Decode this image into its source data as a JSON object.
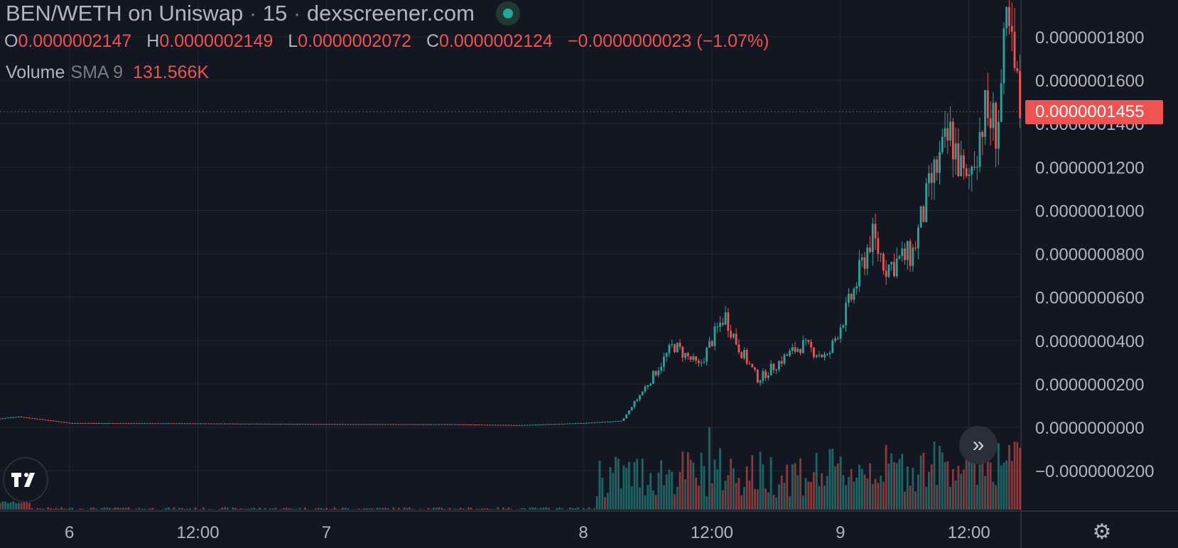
{
  "header": {
    "title": "BEN/WETH on Uniswap",
    "sep1": "·",
    "interval": "15",
    "sep2": "·",
    "source": "dexscreener.com"
  },
  "ohlc": {
    "o_label": "O",
    "o_value": "0.0000002147",
    "h_label": "H",
    "h_value": "0.0000002149",
    "l_label": "L",
    "l_value": "0.0000002072",
    "c_label": "C",
    "c_value": "0.0000002124",
    "change": "−0.0000000023 (−1.07%)"
  },
  "volume": {
    "label": "Volume",
    "sma": "SMA 9",
    "value": "131.566K"
  },
  "current_price": "0.0000001455",
  "colors": {
    "up": "#26a69a",
    "down": "#ef5350",
    "background": "#131722",
    "grid": "#222631",
    "text": "#b2b5be"
  },
  "icons": {
    "logo": "tradingview-logo-icon",
    "scroll": "double-chevron-right-icon",
    "settings": "gear-icon"
  },
  "chart_data": {
    "type": "candlestick",
    "y_ticks": [
      "0.0000001800",
      "0.0000001600",
      "0.0000001400",
      "0.0000001200",
      "0.0000001000",
      "0.0000000800",
      "0.0000000600",
      "0.0000000400",
      "0.0000000200",
      "0.0000000000",
      "−0.0000000200"
    ],
    "y_tick_values": [
      1.8e-07,
      1.6e-07,
      1.4e-07,
      1.2e-07,
      1e-07,
      8e-08,
      6e-08,
      4e-08,
      2e-08,
      0,
      -2e-08
    ],
    "x_ticks": [
      "6",
      "12:00",
      "7",
      "8",
      "12:00",
      "9",
      "12:00"
    ],
    "x_tick_days": [
      0,
      0.5,
      1,
      2,
      2.5,
      3,
      3.5
    ],
    "x_range_days": [
      -0.27,
      3.7
    ],
    "ylim": [
      -2.7e-08,
      1.95e-07
    ],
    "price_keypoints": [
      [
        -0.27,
        4e-09
      ],
      [
        -0.2,
        5e-09
      ],
      [
        0,
        2e-09
      ],
      [
        0.5,
        1.8e-09
      ],
      [
        1,
        1.5e-09
      ],
      [
        1.5,
        1.4e-09
      ],
      [
        1.75,
        1e-09
      ],
      [
        2.0,
        2e-09
      ],
      [
        2.15,
        3e-09
      ],
      [
        2.25,
        2e-08
      ],
      [
        2.35,
        3.8e-08
      ],
      [
        2.45,
        2.8e-08
      ],
      [
        2.55,
        5.2e-08
      ],
      [
        2.6,
        3.8e-08
      ],
      [
        2.68,
        2.2e-08
      ],
      [
        2.78,
        3.2e-08
      ],
      [
        2.85,
        3.8e-08
      ],
      [
        2.95,
        3.2e-08
      ],
      [
        3.05,
        6.2e-08
      ],
      [
        3.12,
        8.8e-08
      ],
      [
        3.18,
        7.4e-08
      ],
      [
        3.28,
        8e-08
      ],
      [
        3.36,
        1.15e-07
      ],
      [
        3.43,
        1.35e-07
      ],
      [
        3.49,
        1.1e-07
      ],
      [
        3.56,
        1.45e-07
      ],
      [
        3.61,
        1.38e-07
      ],
      [
        3.65,
        1.85e-07
      ],
      [
        3.7,
        1.45e-07
      ]
    ],
    "volume_ylim": [
      0,
      2.8
    ]
  }
}
